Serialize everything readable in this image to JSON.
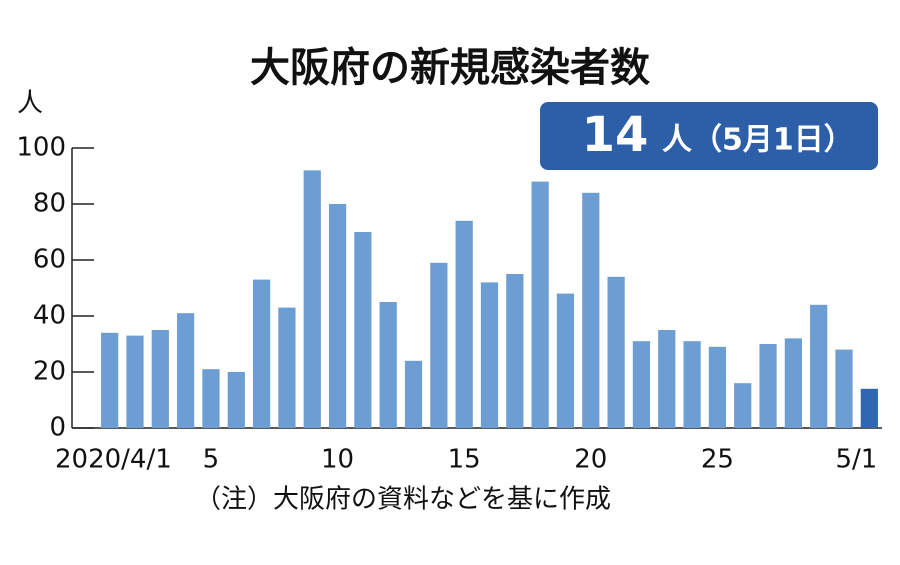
{
  "chart_data": {
    "type": "bar",
    "title": "大阪府の新規感染者数",
    "y_unit": "人",
    "annotation_suffix": "人（5月1日）",
    "note": "（注）大阪府の資料などを基に作成",
    "categories": [
      "2020/4/1",
      null,
      null,
      null,
      "5",
      null,
      null,
      null,
      null,
      "10",
      null,
      null,
      null,
      null,
      "15",
      null,
      null,
      null,
      null,
      "20",
      null,
      null,
      null,
      null,
      "25",
      null,
      null,
      null,
      null,
      null,
      "5/1"
    ],
    "values": [
      34,
      33,
      35,
      41,
      21,
      20,
      53,
      43,
      92,
      80,
      70,
      45,
      24,
      59,
      74,
      52,
      55,
      88,
      48,
      84,
      54,
      31,
      35,
      31,
      29,
      16,
      30,
      32,
      44,
      28,
      14
    ],
    "colors": [
      "#6c9dd3",
      "#6c9dd3",
      "#6c9dd3",
      "#6c9dd3",
      "#6c9dd3",
      "#6c9dd3",
      "#6c9dd3",
      "#6c9dd3",
      "#6c9dd3",
      "#6c9dd3",
      "#6c9dd3",
      "#6c9dd3",
      "#6c9dd3",
      "#6c9dd3",
      "#6c9dd3",
      "#6c9dd3",
      "#6c9dd3",
      "#6c9dd3",
      "#6c9dd3",
      "#6c9dd3",
      "#6c9dd3",
      "#6c9dd3",
      "#6c9dd3",
      "#6c9dd3",
      "#6c9dd3",
      "#6c9dd3",
      "#6c9dd3",
      "#6c9dd3",
      "#6c9dd3",
      "#6c9dd3",
      "#2f67b1"
    ],
    "ylim": [
      0,
      100
    ],
    "yticks": [
      0,
      20,
      40,
      60,
      80,
      100
    ],
    "grid": false
  }
}
